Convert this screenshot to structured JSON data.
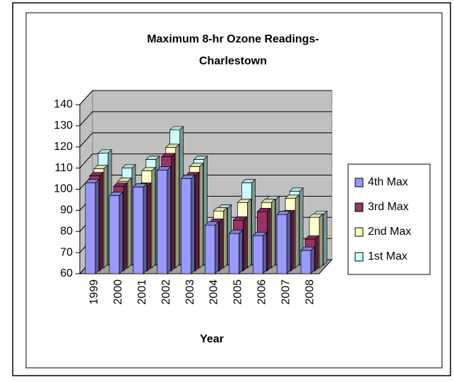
{
  "chart_data": {
    "type": "bar3d",
    "title": [
      "Maximum 8-hr Ozone Readings-",
      "Charlestown"
    ],
    "x_label": "Year",
    "categories": [
      "1999",
      "2000",
      "2001",
      "2002",
      "2003",
      "2004",
      "2005",
      "2006",
      "2007",
      "2008"
    ],
    "series": [
      {
        "name": "4th Max",
        "color": "#9999ff",
        "values": [
          103,
          97,
          101,
          109,
          105,
          83,
          79,
          78,
          88,
          71
        ]
      },
      {
        "name": "3rd Max",
        "color": "#993366",
        "values": [
          105,
          100,
          100,
          114,
          105,
          83,
          84,
          88,
          87,
          75
        ]
      },
      {
        "name": "2nd Max",
        "color": "#ffffcc",
        "values": [
          107,
          101,
          106,
          117,
          108,
          87,
          91,
          91,
          93,
          84
        ]
      },
      {
        "name": "1st Max",
        "color": "#ccffff",
        "values": [
          113,
          106,
          110,
          124,
          110,
          87,
          99,
          91,
          95,
          84
        ]
      }
    ],
    "ylim": [
      60,
      140
    ],
    "yticks": [
      60,
      70,
      80,
      90,
      100,
      110,
      120,
      130,
      140
    ],
    "grid": true,
    "legend": "right"
  }
}
